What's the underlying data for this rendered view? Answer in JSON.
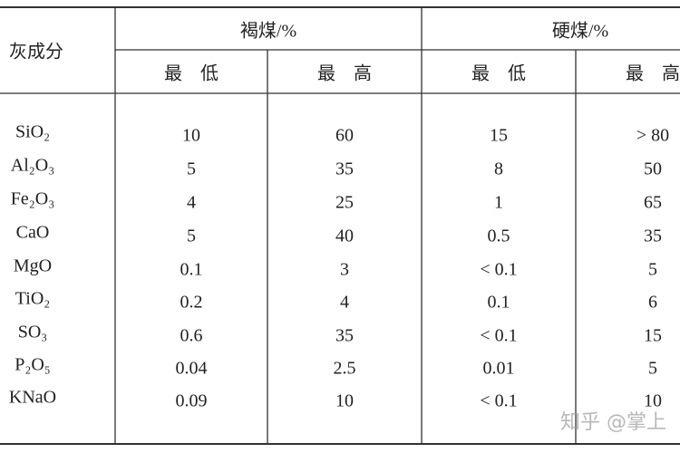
{
  "header": {
    "row_label": "灰成分",
    "groups": [
      "褐煤/%",
      "硬煤/%"
    ],
    "subheaders": [
      "最　低",
      "最　高",
      "最　低",
      "最　高"
    ]
  },
  "table": {
    "rows": [
      [
        "SiO₂",
        "10",
        "60",
        "15",
        "> 80"
      ],
      [
        "Al₂O₃",
        "5",
        "35",
        "8",
        "50"
      ],
      [
        "Fe₂O₃",
        "4",
        "25",
        "1",
        "65"
      ],
      [
        "CaO",
        "5",
        "40",
        "0.5",
        "35"
      ],
      [
        "MgO",
        "0.1",
        "3",
        "< 0.1",
        "5"
      ],
      [
        "TiO₂",
        "0.2",
        "4",
        "0.1",
        "6"
      ],
      [
        "SO₃",
        "0.6",
        "35",
        "< 0.1",
        "15"
      ],
      [
        "P₂O₅",
        "0.04",
        "2.5",
        "0.01",
        "5"
      ],
      [
        "KNaO",
        "0.09",
        "10",
        "< 0.1",
        "10"
      ]
    ]
  },
  "watermark": "知乎 @掌上"
}
